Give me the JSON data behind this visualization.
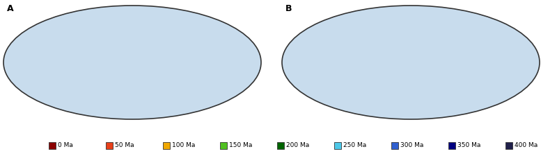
{
  "legend_items": [
    {
      "label": "0 Ma",
      "color": "#8B0000"
    },
    {
      "label": "50 Ma",
      "color": "#E8401A"
    },
    {
      "label": "100 Ma",
      "color": "#F0A800"
    },
    {
      "label": "150 Ma",
      "color": "#50C020"
    },
    {
      "label": "200 Ma",
      "color": "#006400"
    },
    {
      "label": "250 Ma",
      "color": "#4DC8E8"
    },
    {
      "label": "300 Ma",
      "color": "#3060D0"
    },
    {
      "label": "350 Ma",
      "color": "#000080"
    },
    {
      "label": "400 Ma",
      "color": "#20204A"
    }
  ],
  "background_color": "#ffffff",
  "figure_width": 8.0,
  "figure_height": 2.25,
  "dpi": 100,
  "ocean_color": "#c8dced",
  "land_color": "#f5f2ea",
  "llsvp_color": "#6B3050",
  "transition_color": "#bdd6e8",
  "border_color": "#333333",
  "legend_square_size": 0.011,
  "legend_fontsize": 6.5,
  "panel_label_fontsize": 9
}
